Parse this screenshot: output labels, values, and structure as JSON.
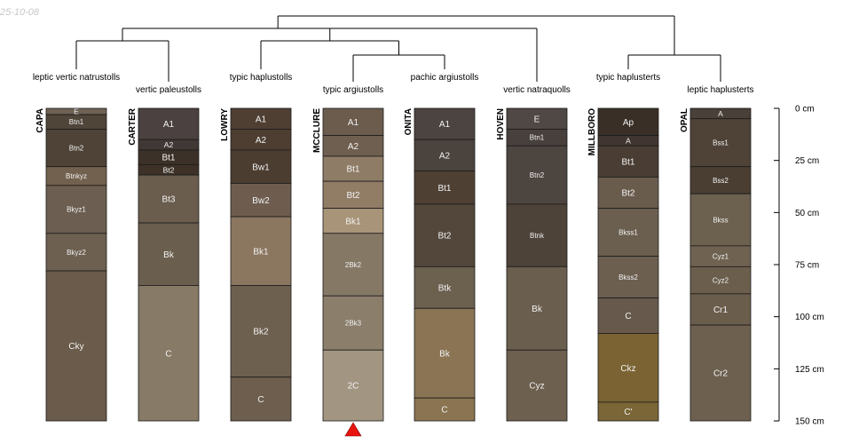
{
  "date_stamp": "25-10-08",
  "colors": {
    "line": "#000000",
    "marker": "#e8140f",
    "horizon_border": "#1a1a1a"
  },
  "depth_axis": {
    "unit": "cm",
    "max_depth": 150,
    "ticks": [
      {
        "depth": 0,
        "label": "0 cm"
      },
      {
        "depth": 25,
        "label": "25 cm"
      },
      {
        "depth": 50,
        "label": "50 cm"
      },
      {
        "depth": 75,
        "label": "75 cm"
      },
      {
        "depth": 100,
        "label": "100 cm"
      },
      {
        "depth": 125,
        "label": "125 cm"
      },
      {
        "depth": 150,
        "label": "150 cm"
      }
    ]
  },
  "profiles": [
    {
      "id": "CAPA",
      "taxon": "leptic vertic natrustolls",
      "horizons": [
        {
          "name": "E",
          "top": 0,
          "bottom": 3,
          "color": "#6e6254"
        },
        {
          "name": "Btn1",
          "top": 3,
          "bottom": 10,
          "color": "#504539"
        },
        {
          "name": "Btn2",
          "top": 10,
          "bottom": 28,
          "color": "#4e4336"
        },
        {
          "name": "Btnkyz",
          "top": 28,
          "bottom": 37,
          "color": "#72614f"
        },
        {
          "name": "Bkyz1",
          "top": 37,
          "bottom": 60,
          "color": "#6c5f51"
        },
        {
          "name": "Bkyz2",
          "top": 60,
          "bottom": 78,
          "color": "#6d6050"
        },
        {
          "name": "Cky",
          "top": 78,
          "bottom": 150,
          "color": "#6a5b4a"
        }
      ]
    },
    {
      "id": "CARTER",
      "taxon": "vertic paleustolls",
      "horizons": [
        {
          "name": "A1",
          "top": 0,
          "bottom": 15,
          "color": "#4a4140"
        },
        {
          "name": "A2",
          "top": 15,
          "bottom": 20,
          "color": "#403834"
        },
        {
          "name": "Bt1",
          "top": 20,
          "bottom": 27,
          "color": "#3c3128"
        },
        {
          "name": "Bt2",
          "top": 27,
          "bottom": 32,
          "color": "#3e3228"
        },
        {
          "name": "Bt3",
          "top": 32,
          "bottom": 55,
          "color": "#6a5d4e"
        },
        {
          "name": "Bk",
          "top": 55,
          "bottom": 85,
          "color": "#6a5f4e"
        },
        {
          "name": "C",
          "top": 85,
          "bottom": 150,
          "color": "#877a66"
        }
      ]
    },
    {
      "id": "LOWRY",
      "taxon": "typic haplustolls",
      "horizons": [
        {
          "name": "A1",
          "top": 0,
          "bottom": 10,
          "color": "#4f3f33"
        },
        {
          "name": "A2",
          "top": 10,
          "bottom": 20,
          "color": "#4d3e31"
        },
        {
          "name": "Bw1",
          "top": 20,
          "bottom": 36,
          "color": "#4b3d30"
        },
        {
          "name": "Bw2",
          "top": 36,
          "bottom": 52,
          "color": "#6e5d4e"
        },
        {
          "name": "Bk1",
          "top": 52,
          "bottom": 85,
          "color": "#8b7660"
        },
        {
          "name": "Bk2",
          "top": 85,
          "bottom": 129,
          "color": "#6d604f"
        },
        {
          "name": "C",
          "top": 129,
          "bottom": 150,
          "color": "#6d5e4e"
        }
      ]
    },
    {
      "id": "MCCLURE",
      "taxon": "typic argiustolls",
      "horizons": [
        {
          "name": "A1",
          "top": 0,
          "bottom": 13,
          "color": "#6b5c4e"
        },
        {
          "name": "A2",
          "top": 13,
          "bottom": 23,
          "color": "#6f5f50"
        },
        {
          "name": "Bt1",
          "top": 23,
          "bottom": 35,
          "color": "#8f7c66"
        },
        {
          "name": "Bt2",
          "top": 35,
          "bottom": 48,
          "color": "#917c66"
        },
        {
          "name": "Bk1",
          "top": 48,
          "bottom": 60,
          "color": "#a89479"
        },
        {
          "name": "2Bk2",
          "top": 60,
          "bottom": 90,
          "color": "#857966"
        },
        {
          "name": "2Bk3",
          "top": 90,
          "bottom": 116,
          "color": "#8b7f6c"
        },
        {
          "name": "2C",
          "top": 116,
          "bottom": 150,
          "color": "#a29581"
        }
      ]
    },
    {
      "id": "ONITA",
      "taxon": "pachic argiustolls",
      "horizons": [
        {
          "name": "A1",
          "top": 0,
          "bottom": 15,
          "color": "#4c4440"
        },
        {
          "name": "A2",
          "top": 15,
          "bottom": 30,
          "color": "#4b433d"
        },
        {
          "name": "Bt1",
          "top": 30,
          "bottom": 46,
          "color": "#4f4034"
        },
        {
          "name": "Bt2",
          "top": 46,
          "bottom": 76,
          "color": "#53473b"
        },
        {
          "name": "Btk",
          "top": 76,
          "bottom": 96,
          "color": "#6c604f"
        },
        {
          "name": "Bk",
          "top": 96,
          "bottom": 139,
          "color": "#8a7454"
        },
        {
          "name": "C",
          "top": 139,
          "bottom": 150,
          "color": "#8a7451"
        }
      ]
    },
    {
      "id": "HOVEN",
      "taxon": "vertic natraquolls",
      "horizons": [
        {
          "name": "E",
          "top": 0,
          "bottom": 10,
          "color": "#4f4844"
        },
        {
          "name": "Btn1",
          "top": 10,
          "bottom": 18,
          "color": "#48403c"
        },
        {
          "name": "Btn2",
          "top": 18,
          "bottom": 46,
          "color": "#4d4540"
        },
        {
          "name": "Btnk",
          "top": 46,
          "bottom": 76,
          "color": "#4d4339"
        },
        {
          "name": "Bk",
          "top": 76,
          "bottom": 116,
          "color": "#6a5e4e"
        },
        {
          "name": "Cyz",
          "top": 116,
          "bottom": 150,
          "color": "#6d604f"
        }
      ]
    },
    {
      "id": "MILLBORO",
      "taxon": "typic haplusterts",
      "horizons": [
        {
          "name": "Ap",
          "top": 0,
          "bottom": 13,
          "color": "#3a2f27"
        },
        {
          "name": "A",
          "top": 13,
          "bottom": 18,
          "color": "#403530"
        },
        {
          "name": "Bt1",
          "top": 18,
          "bottom": 33,
          "color": "#4a3e34"
        },
        {
          "name": "Bt2",
          "top": 33,
          "bottom": 48,
          "color": "#6a5c4d"
        },
        {
          "name": "Bkss1",
          "top": 48,
          "bottom": 71,
          "color": "#6b5f4f"
        },
        {
          "name": "Bkss2",
          "top": 71,
          "bottom": 91,
          "color": "#6c5f50"
        },
        {
          "name": "C",
          "top": 91,
          "bottom": 108,
          "color": "#675a4c"
        },
        {
          "name": "Ckz",
          "top": 108,
          "bottom": 141,
          "color": "#7b6333"
        },
        {
          "name": "C'",
          "top": 141,
          "bottom": 150,
          "color": "#7a6636"
        }
      ]
    },
    {
      "id": "OPAL",
      "taxon": "leptic haplusterts",
      "horizons": [
        {
          "name": "A",
          "top": 0,
          "bottom": 5,
          "color": "#494039"
        },
        {
          "name": "Bss1",
          "top": 5,
          "bottom": 28,
          "color": "#4f4337"
        },
        {
          "name": "Bss2",
          "top": 28,
          "bottom": 41,
          "color": "#4a3e32"
        },
        {
          "name": "Bkss",
          "top": 41,
          "bottom": 66,
          "color": "#6c604f"
        },
        {
          "name": "Cyz1",
          "top": 66,
          "bottom": 76,
          "color": "#6f6251"
        },
        {
          "name": "Cyz2",
          "top": 76,
          "bottom": 89,
          "color": "#6b5e4d"
        },
        {
          "name": "Cr1",
          "top": 89,
          "bottom": 104,
          "color": "#6a5d4c"
        },
        {
          "name": "Cr2",
          "top": 104,
          "bottom": 150,
          "color": "#6d604f"
        }
      ]
    }
  ]
}
